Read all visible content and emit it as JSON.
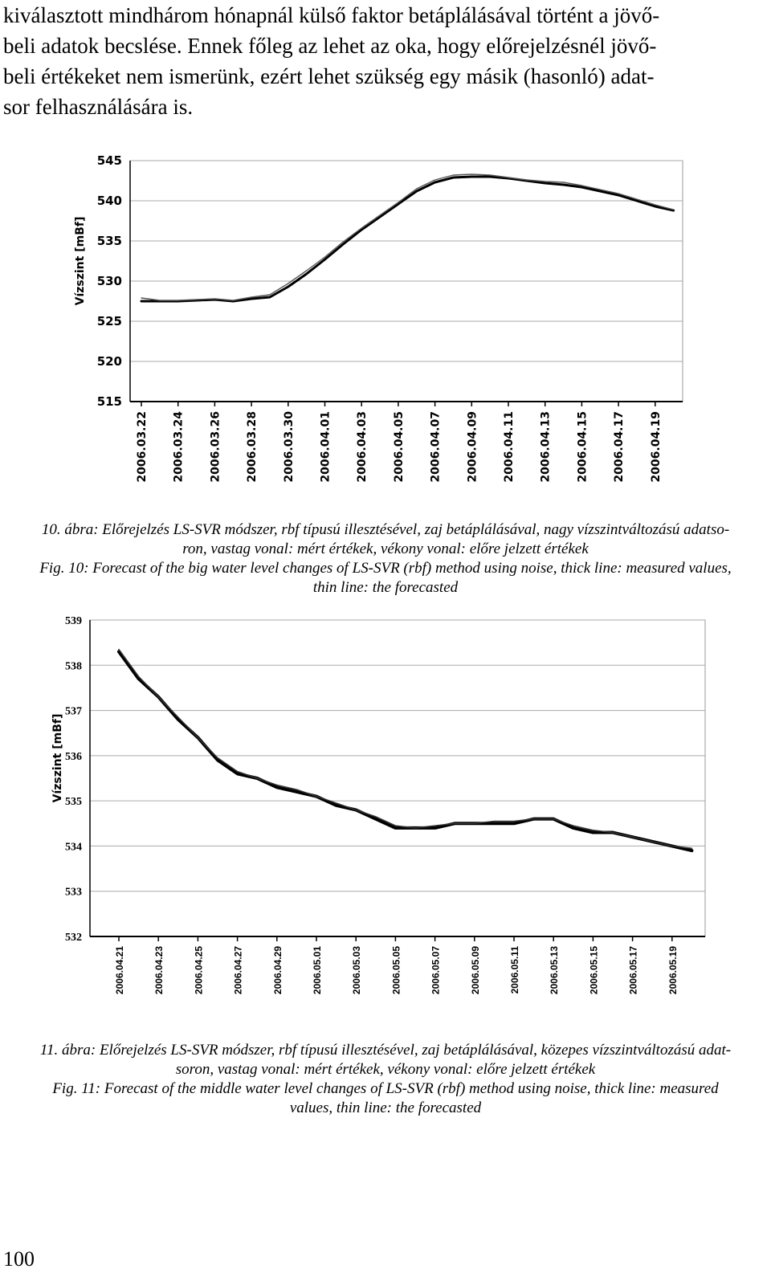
{
  "intro": {
    "lines": [
      "kiválasztott mindhárom hónapnál külső faktor betáplálásával történt a jövő-",
      "beli adatok becslése. Ennek főleg az lehet az oka, hogy előrejelzésnél jövő-",
      "beli értékeket nem ismerünk, ezért lehet szükség egy másik (hasonló) adat-",
      "sor felhasználására is."
    ]
  },
  "chart_data": [
    {
      "type": "line",
      "title": "",
      "ylabel": "Vízszint [mBf]",
      "xlabel": "",
      "ylim": [
        515,
        545
      ],
      "yticks": [
        "545",
        "540",
        "535",
        "530",
        "525",
        "520",
        "515"
      ],
      "categories": [
        "2006.03.22",
        "2006.03.24",
        "2006.03.26",
        "2006.03.28",
        "2006.03.30",
        "2006.04.01",
        "2006.04.03",
        "2006.04.05",
        "2006.04.07",
        "2006.04.09",
        "2006.04.11",
        "2006.04.13",
        "2006.04.15",
        "2006.04.17",
        "2006.04.19"
      ],
      "x": [
        0,
        0.5,
        1,
        1.5,
        2,
        2.5,
        3,
        3.5,
        4,
        4.5,
        5,
        5.5,
        6,
        6.5,
        7,
        7.5,
        8,
        8.5,
        9,
        9.5,
        10,
        10.5,
        11,
        11.5,
        12,
        12.5,
        13,
        13.5,
        14,
        14.5
      ],
      "series": [
        {
          "name": "mért értékek",
          "values": [
            527.5,
            527.5,
            527.5,
            527.6,
            527.7,
            527.5,
            527.8,
            528.0,
            529.3,
            530.9,
            532.7,
            534.6,
            536.4,
            538.0,
            539.6,
            541.2,
            542.3,
            542.9,
            543.0,
            543.0,
            542.8,
            542.5,
            542.2,
            542.0,
            541.7,
            541.2,
            540.7,
            540.0,
            539.3,
            538.8
          ]
        },
        {
          "name": "előre jelzett értékek",
          "values": [
            527.9,
            527.6,
            527.6,
            527.7,
            527.8,
            527.6,
            528.0,
            528.3,
            529.7,
            531.3,
            533.0,
            534.9,
            536.6,
            538.2,
            539.8,
            541.5,
            542.6,
            543.2,
            543.3,
            543.2,
            542.9,
            542.6,
            542.4,
            542.3,
            541.9,
            541.4,
            540.9,
            540.2,
            539.5,
            538.9
          ]
        }
      ]
    },
    {
      "type": "line",
      "title": "",
      "ylabel": "Vízszint [mBf]",
      "xlabel": "",
      "ylim": [
        532,
        539
      ],
      "yticks": [
        "539",
        "538",
        "537",
        "536",
        "535",
        "534",
        "533",
        "532"
      ],
      "categories": [
        "2006.04.21",
        "2006.04.23",
        "2006.04.25",
        "2006.04.27",
        "2006.04.29",
        "2006.05.01",
        "2006.05.03",
        "2006.05.05",
        "2006.05.07",
        "2006.05.09",
        "2006.05.11",
        "2006.05.13",
        "2006.05.15",
        "2006.05.17",
        "2006.05.19"
      ],
      "x": [
        0,
        0.5,
        1,
        1.5,
        2,
        2.5,
        3,
        3.5,
        4,
        4.5,
        5,
        5.5,
        6,
        6.5,
        7,
        7.5,
        8,
        8.5,
        9,
        9.5,
        10,
        10.5,
        11,
        11.5,
        12,
        12.5,
        13,
        13.5,
        14,
        14.5
      ],
      "series": [
        {
          "name": "mért értékek",
          "values": [
            538.3,
            537.7,
            537.3,
            536.8,
            536.4,
            535.9,
            535.6,
            535.5,
            535.3,
            535.2,
            535.1,
            534.9,
            534.8,
            534.6,
            534.4,
            534.4,
            534.4,
            534.5,
            534.5,
            534.5,
            534.5,
            534.6,
            534.6,
            534.4,
            534.3,
            534.3,
            534.2,
            534.1,
            534.0,
            533.9
          ]
        },
        {
          "name": "előre jelzett értékek",
          "values": [
            538.35,
            537.75,
            537.3,
            536.85,
            536.4,
            535.95,
            535.65,
            535.5,
            535.35,
            535.25,
            535.1,
            534.95,
            534.8,
            534.65,
            534.45,
            534.4,
            534.45,
            534.5,
            534.5,
            534.55,
            534.55,
            534.6,
            534.6,
            534.45,
            534.35,
            534.3,
            534.2,
            534.1,
            534.0,
            533.95
          ]
        }
      ]
    }
  ],
  "captions": {
    "fig10": {
      "hu_line1": "10. ábra: Előrejelzés LS-SVR módszer, rbf típusú illesztésével, zaj betáplálásával, nagy vízszintváltozású adatso-",
      "hu_line2": "ron, vastag vonal: mért értékek, vékony vonal: előre jelzett értékek",
      "en_line1": "Fig. 10: Forecast of  the big water level changes of LS-SVR (rbf) method using noise,  thick line: measured values,",
      "en_line2": "thin line: the forecasted"
    },
    "fig11": {
      "hu_line1": "11. ábra: Előrejelzés LS-SVR módszer, rbf típusú illesztésével, zaj betáplálásával, közepes vízszintváltozású adat-",
      "hu_line2": "soron, vastag vonal: mért értékek, vékony vonal: előre jelzett értékek",
      "en_line1": "Fig. 11: Forecast of  the middle water level changes of LS-SVR (rbf) method using noise, thick line: measured",
      "en_line2": "values, thin line: the forecasted"
    }
  },
  "page_number": "100"
}
